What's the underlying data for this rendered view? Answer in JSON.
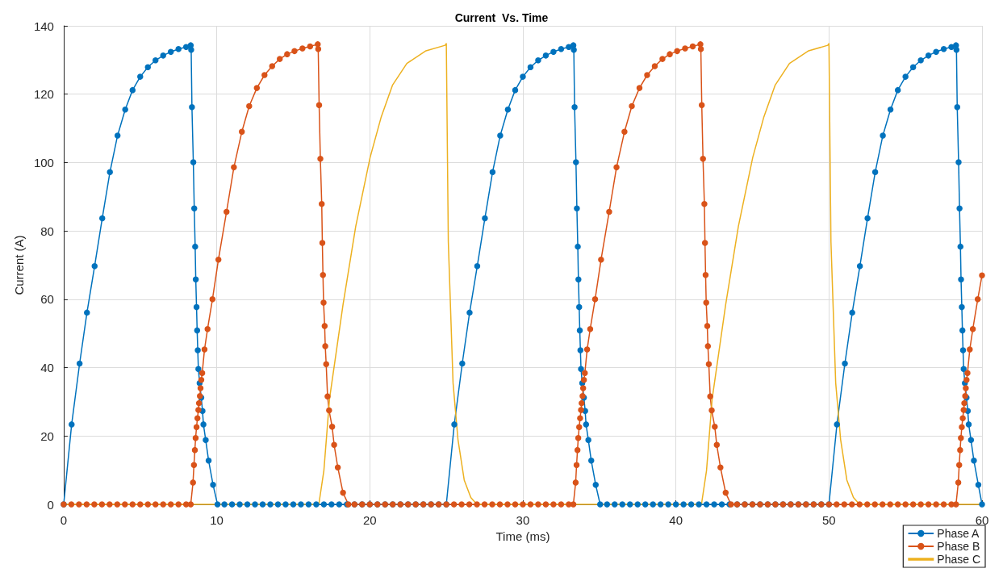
{
  "chart_data": {
    "type": "line",
    "title": "Current  Vs. Time",
    "xlabel": "Time (ms)",
    "ylabel": "Current (A)",
    "xlim": [
      0,
      60
    ],
    "xticks": [
      0,
      10,
      20,
      30,
      40,
      50,
      60
    ],
    "ylim": [
      0,
      140
    ],
    "yticks": [
      0,
      20,
      40,
      60,
      80,
      100,
      120,
      140
    ],
    "grid": true,
    "legend": "bottom right",
    "series": [
      {
        "name": "Phase A",
        "color": "#0072bd",
        "marker": "circle",
        "x": [
          0,
          0.52,
          1.04,
          1.52,
          2.02,
          2.52,
          3.02,
          3.52,
          4.02,
          4.5,
          5,
          5.5,
          6,
          6.5,
          7,
          7.5,
          8,
          8.3,
          8.33,
          8.38,
          8.47,
          8.53,
          8.59,
          8.63,
          8.68,
          8.72,
          8.76,
          8.8,
          8.88,
          8.99,
          9.07,
          9.13,
          9.28,
          9.47,
          9.76,
          10.05,
          10.5,
          11,
          11.5,
          12,
          12.5,
          13,
          13.5,
          14,
          14.5,
          15,
          15.5,
          16,
          16.5,
          17,
          17.5,
          18,
          18.5,
          19,
          19.5,
          20,
          20.5,
          21,
          21.5,
          22,
          22.5,
          23,
          23.5,
          24,
          24.5,
          25,
          25.52,
          26.04,
          26.52,
          27.02,
          27.52,
          28.02,
          28.52,
          29.02,
          29.5,
          30,
          30.5,
          31,
          31.5,
          32,
          32.5,
          33,
          33.3,
          33.33,
          33.38,
          33.47,
          33.53,
          33.59,
          33.63,
          33.68,
          33.72,
          33.76,
          33.8,
          33.88,
          33.99,
          34.07,
          34.13,
          34.28,
          34.47,
          34.76,
          35.05,
          35.5,
          36,
          36.5,
          37,
          37.5,
          38,
          38.5,
          39,
          39.5,
          40,
          40.5,
          41,
          41.5,
          42,
          42.5,
          43,
          43.5,
          44,
          44.5,
          45,
          45.5,
          46,
          46.5,
          47,
          47.5,
          48,
          48.5,
          49,
          49.5,
          50,
          50.52,
          51.04,
          51.52,
          52.02,
          52.52,
          53.02,
          53.52,
          54.02,
          54.5,
          55,
          55.5,
          56,
          56.5,
          57,
          57.5,
          58,
          58.3,
          58.33,
          58.38,
          58.47,
          58.53,
          58.59,
          58.63,
          58.68,
          58.72,
          58.76,
          58.8,
          58.88,
          58.99,
          59.07,
          59.13,
          59.28,
          59.47,
          59.76,
          60
        ],
        "values": [
          0,
          23.4,
          41.2,
          56.1,
          69.7,
          83.7,
          97.2,
          107.9,
          115.5,
          121.2,
          125.1,
          127.9,
          129.9,
          131.3,
          132.4,
          133.2,
          133.8,
          134.3,
          133,
          116.2,
          100.1,
          86.6,
          75.4,
          65.8,
          57.7,
          50.9,
          45.1,
          39.6,
          35.5,
          31.2,
          27.3,
          23.4,
          18.8,
          12.8,
          5.7,
          0,
          0,
          0,
          0,
          0,
          0,
          0,
          0,
          0,
          0,
          0,
          0,
          0,
          0,
          0,
          0,
          0,
          0,
          0,
          0,
          0,
          0,
          0,
          0,
          0,
          0,
          0,
          0,
          0,
          0,
          0,
          23.4,
          41.2,
          56.1,
          69.7,
          83.7,
          97.2,
          107.9,
          115.5,
          121.2,
          125.1,
          127.9,
          129.9,
          131.3,
          132.4,
          133.2,
          133.8,
          134.3,
          133,
          116.2,
          100.1,
          86.6,
          75.4,
          65.8,
          57.7,
          50.9,
          45.1,
          39.6,
          35.5,
          31.2,
          27.3,
          23.4,
          18.8,
          12.8,
          5.7,
          0,
          0,
          0,
          0,
          0,
          0,
          0,
          0,
          0,
          0,
          0,
          0,
          0,
          0,
          0,
          0,
          0,
          0,
          0,
          0,
          0,
          0,
          0,
          0,
          0,
          0,
          0,
          0,
          0,
          0,
          0,
          23.4,
          41.2,
          56.1,
          69.7,
          83.7,
          97.2,
          107.9,
          115.5,
          121.2,
          125.1,
          127.9,
          129.9,
          131.3,
          132.4,
          133.2,
          133.8,
          134.3,
          133,
          116.2,
          100.1,
          86.6,
          75.4,
          65.8,
          57.7,
          50.9,
          45.1,
          39.6,
          35.5,
          31.2,
          27.3,
          23.4,
          18.8,
          12.8,
          5.7,
          0
        ]
      },
      {
        "name": "Phase B",
        "color": "#d95319",
        "marker": "circle",
        "x": [
          0,
          0.5,
          1,
          1.5,
          2,
          2.5,
          3,
          3.5,
          4,
          4.5,
          5,
          5.5,
          6,
          6.5,
          7,
          7.5,
          8,
          8.3,
          8.45,
          8.51,
          8.57,
          8.62,
          8.68,
          8.74,
          8.8,
          8.84,
          8.9,
          8.94,
          8.99,
          9.05,
          9.2,
          9.4,
          9.72,
          10.11,
          10.64,
          11.12,
          11.64,
          12.12,
          12.62,
          13.12,
          13.62,
          14.12,
          14.6,
          15.08,
          15.6,
          16.1,
          16.6,
          16.63,
          16.69,
          16.77,
          16.86,
          16.9,
          16.94,
          16.98,
          17.05,
          17.09,
          17.15,
          17.24,
          17.34,
          17.54,
          17.67,
          17.91,
          18.25,
          18.6,
          19,
          19.5,
          20,
          20.5,
          21,
          21.5,
          22,
          22.5,
          23,
          23.5,
          24,
          24.5,
          25,
          25.5,
          26,
          26.5,
          27,
          27.5,
          28,
          28.5,
          29,
          29.5,
          30,
          30.5,
          31,
          31.5,
          32,
          32.5,
          33,
          33.3,
          33.45,
          33.51,
          33.57,
          33.62,
          33.68,
          33.74,
          33.8,
          33.84,
          33.9,
          33.94,
          33.99,
          34.05,
          34.2,
          34.4,
          34.72,
          35.11,
          35.64,
          36.12,
          36.64,
          37.12,
          37.62,
          38.12,
          38.62,
          39.12,
          39.6,
          40.08,
          40.6,
          41.1,
          41.6,
          41.63,
          41.69,
          41.77,
          41.86,
          41.9,
          41.94,
          41.98,
          42.05,
          42.09,
          42.15,
          42.24,
          42.34,
          42.54,
          42.67,
          42.91,
          43.25,
          43.6,
          44,
          44.5,
          45,
          45.5,
          46,
          46.5,
          47,
          47.5,
          48,
          48.5,
          49,
          49.5,
          50,
          50.5,
          51,
          51.5,
          52,
          52.5,
          53,
          53.5,
          54,
          54.5,
          55,
          55.5,
          56,
          56.5,
          57,
          57.5,
          58,
          58.3,
          58.45,
          58.51,
          58.57,
          58.62,
          58.68,
          58.74,
          58.8,
          58.84,
          58.9,
          58.94,
          58.99,
          59.05,
          59.2,
          59.4,
          59.72,
          60
        ],
        "values": [
          0,
          0,
          0,
          0,
          0,
          0,
          0,
          0,
          0,
          0,
          0,
          0,
          0,
          0,
          0,
          0,
          0,
          0,
          6.4,
          11.5,
          15.9,
          19.4,
          22.6,
          25.2,
          27.6,
          29.6,
          31.7,
          34,
          36.4,
          38.4,
          45.3,
          51.3,
          60,
          71.6,
          85.6,
          98.6,
          109,
          116.5,
          121.8,
          125.6,
          128.2,
          130.3,
          131.7,
          132.6,
          133.4,
          134,
          134.6,
          133.2,
          116.8,
          101.1,
          87.9,
          76.5,
          67.1,
          59,
          52.2,
          46.3,
          41,
          31.6,
          27.5,
          22.7,
          17.4,
          10.8,
          3.4,
          0,
          0,
          0,
          0,
          0,
          0,
          0,
          0,
          0,
          0,
          0,
          0,
          0,
          0,
          0,
          0,
          0,
          0,
          0,
          0,
          0,
          0,
          0,
          0,
          0,
          0,
          0,
          0,
          0,
          0,
          0,
          6.4,
          11.5,
          15.9,
          19.4,
          22.6,
          25.2,
          27.6,
          29.6,
          31.7,
          34,
          36.4,
          38.4,
          45.3,
          51.3,
          60,
          71.6,
          85.6,
          98.6,
          109,
          116.5,
          121.8,
          125.6,
          128.2,
          130.3,
          131.7,
          132.6,
          133.4,
          134,
          134.6,
          133.2,
          116.8,
          101.1,
          87.9,
          76.5,
          67.1,
          59,
          52.2,
          46.3,
          41,
          31.6,
          27.5,
          22.7,
          17.4,
          10.8,
          3.4,
          0,
          0,
          0,
          0,
          0,
          0,
          0,
          0,
          0,
          0,
          0,
          0,
          0,
          0,
          0,
          0,
          0,
          0,
          0,
          0,
          0,
          0,
          0,
          0,
          0,
          0,
          0,
          0,
          0,
          0,
          0,
          6.4,
          11.5,
          15.9,
          19.4,
          22.6,
          25.2,
          27.6,
          29.6,
          31.7,
          34,
          36.4,
          38.4,
          45.3,
          51.3,
          60,
          67
        ]
      },
      {
        "name": "Phase C",
        "color": "#edb120",
        "marker": "none",
        "x": [
          0,
          16.67,
          17,
          17.37,
          18.25,
          19.08,
          20.02,
          20.75,
          21.48,
          22.42,
          23.67,
          24.92,
          25,
          25.13,
          25.44,
          25.76,
          26.17,
          26.6,
          27,
          41.67,
          42,
          42.37,
          43.25,
          44.08,
          45.02,
          45.75,
          46.48,
          47.42,
          48.67,
          49.92,
          50,
          50.13,
          50.44,
          50.76,
          51.17,
          51.6,
          52,
          60
        ],
        "values": [
          0,
          0,
          9.9,
          30.9,
          58.4,
          81.3,
          101.5,
          113.4,
          122.6,
          129,
          132.7,
          134.3,
          134.8,
          76.8,
          35.5,
          19,
          7.1,
          2,
          0,
          0,
          9.9,
          30.9,
          58.4,
          81.3,
          101.5,
          113.4,
          122.6,
          129,
          132.7,
          134.3,
          134.8,
          76.8,
          35.5,
          19,
          7.1,
          2,
          0,
          0
        ]
      }
    ]
  }
}
